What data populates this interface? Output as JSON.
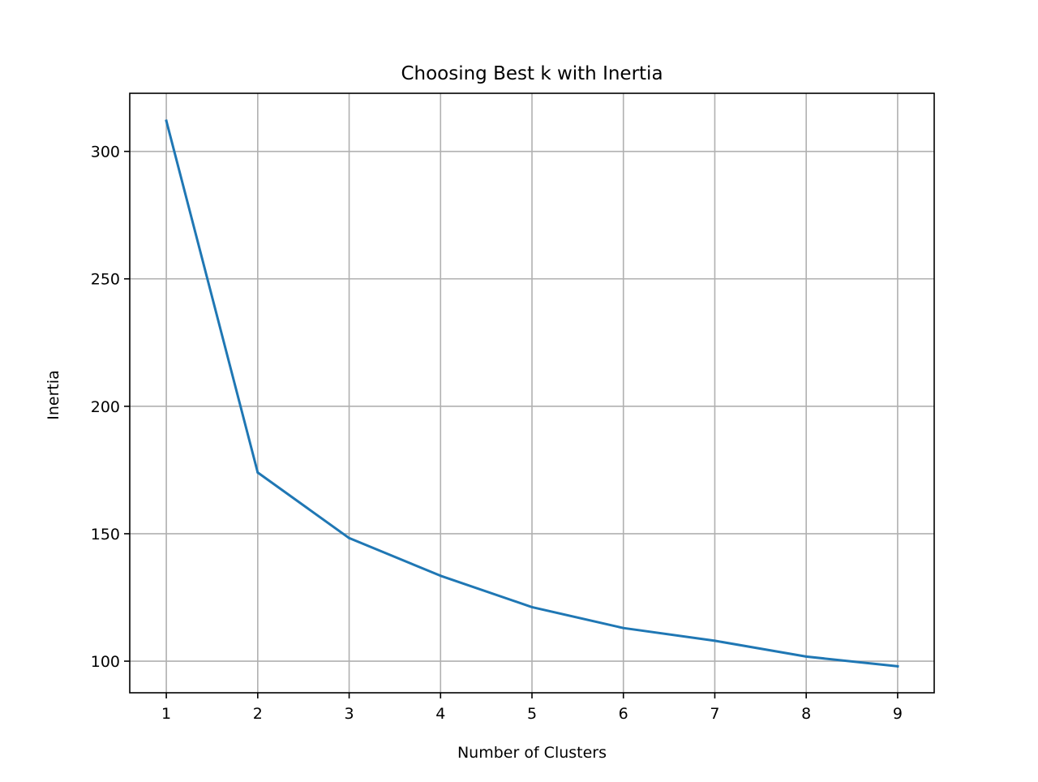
{
  "chart_data": {
    "type": "line",
    "title": "Choosing Best k with Inertia",
    "xlabel": "Number of Clusters",
    "ylabel": "Inertia",
    "x": [
      1,
      2,
      3,
      4,
      5,
      6,
      7,
      8,
      9
    ],
    "series": [
      {
        "values": [
          312,
          174,
          148.3,
          133.5,
          121.2,
          113,
          108,
          101.8,
          98
        ],
        "color": "#1f77b4"
      }
    ],
    "xlim": [
      0.6,
      9.4
    ],
    "ylim": [
      87.6,
      322.8
    ],
    "xticks": [
      1,
      2,
      3,
      4,
      5,
      6,
      7,
      8,
      9
    ],
    "yticks": [
      100,
      150,
      200,
      250,
      300
    ],
    "grid": true,
    "grid_color": "#b0b0b0",
    "legend": false
  }
}
